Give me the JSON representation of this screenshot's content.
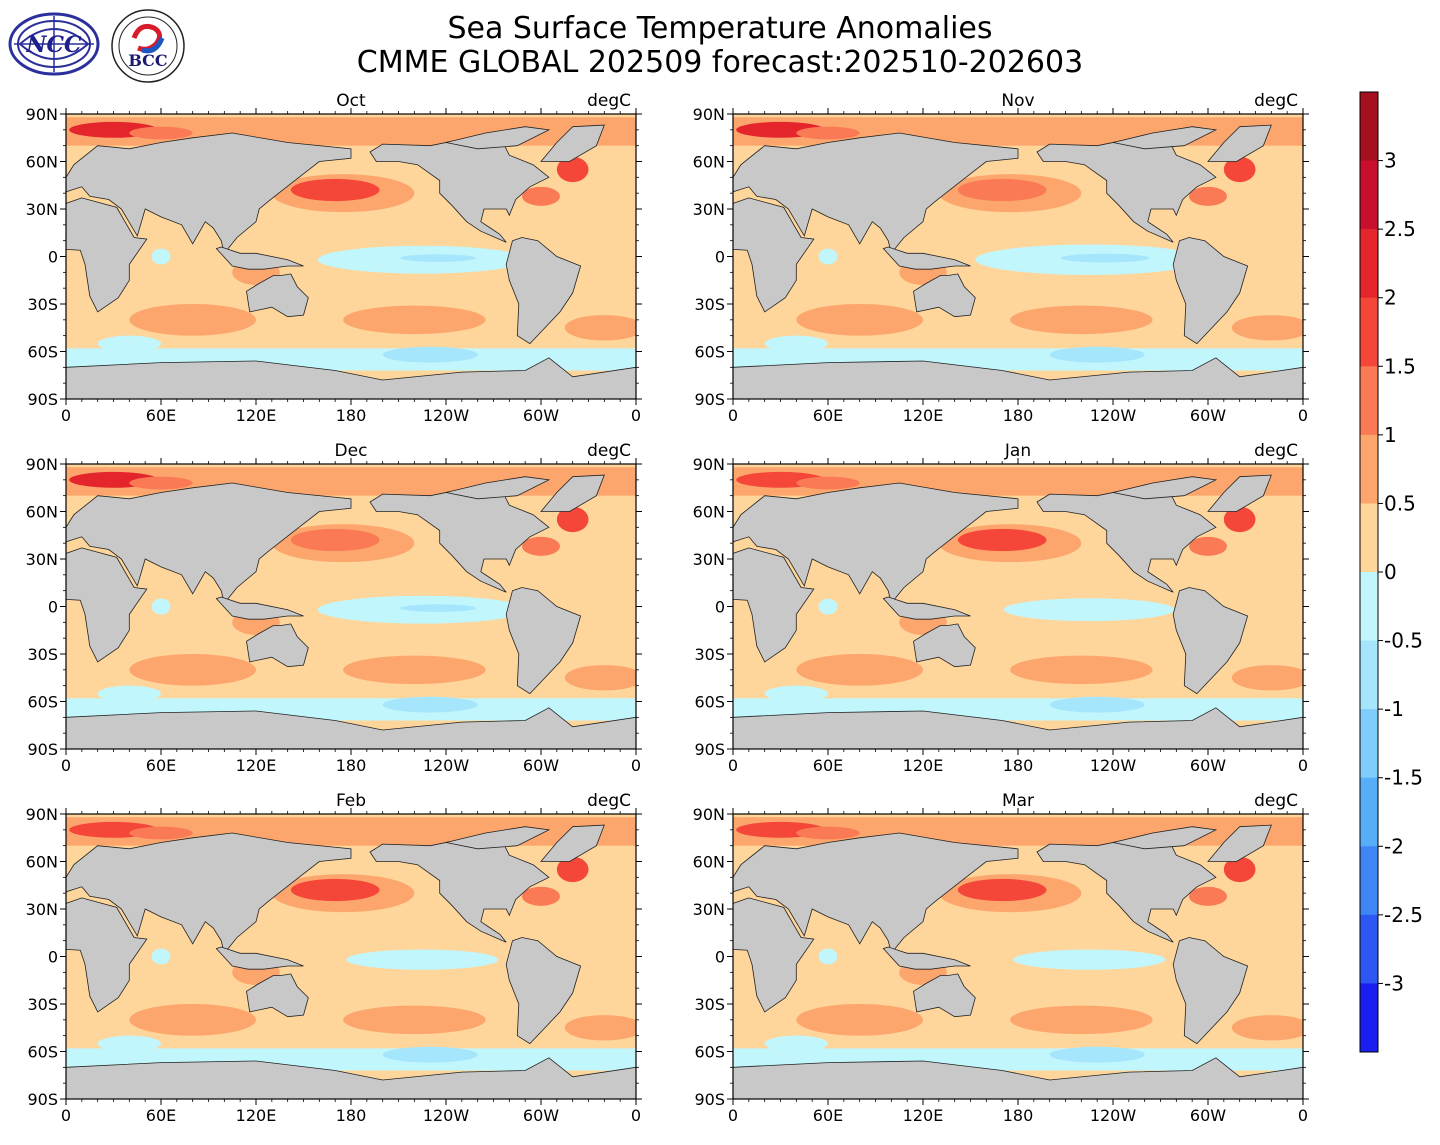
{
  "header": {
    "title_line1": "Sea Surface Temperature Anomalies",
    "title_line2": "CMME GLOBAL 202509 forecast:202510-202603",
    "logo_left_text": "NCC",
    "logo_right_text": "BCC"
  },
  "units": "degC",
  "lat_ticks": [
    "90N",
    "60N",
    "30N",
    "0",
    "30S",
    "60S",
    "90S"
  ],
  "lon_ticks": [
    "0",
    "60E",
    "120E",
    "180",
    "120W",
    "60W",
    "0"
  ],
  "panels": [
    {
      "month": "Oct",
      "units": "degC",
      "enso_anomaly": -0.6,
      "north_pacific": 1.5,
      "arctic_atlantic": 2.0
    },
    {
      "month": "Nov",
      "units": "degC",
      "enso_anomaly": -0.7,
      "north_pacific": 1.2,
      "arctic_atlantic": 2.2
    },
    {
      "month": "Dec",
      "units": "degC",
      "enso_anomaly": -0.6,
      "north_pacific": 1.1,
      "arctic_atlantic": 2.0
    },
    {
      "month": "Jan",
      "units": "degC",
      "enso_anomaly": -0.4,
      "north_pacific": 1.3,
      "arctic_atlantic": 1.8
    },
    {
      "month": "Feb",
      "units": "degC",
      "enso_anomaly": -0.3,
      "north_pacific": 1.3,
      "arctic_atlantic": 1.8
    },
    {
      "month": "Mar",
      "units": "degC",
      "enso_anomaly": -0.3,
      "north_pacific": 1.3,
      "arctic_atlantic": 1.7
    }
  ],
  "colorbar": {
    "labels": [
      "3",
      "2.5",
      "2",
      "1.5",
      "1",
      "0.5",
      "0",
      "-0.5",
      "-1",
      "-1.5",
      "-2",
      "-2.5",
      "-3"
    ],
    "colors": [
      "#a50f20",
      "#c8102e",
      "#e4262c",
      "#f4473a",
      "#f97a55",
      "#fca66e",
      "#fed59a",
      "#c2f6fd",
      "#a6e6fd",
      "#7fcdfb",
      "#56aef8",
      "#3f85f5",
      "#2c57f2",
      "#1a1ff0"
    ]
  }
}
